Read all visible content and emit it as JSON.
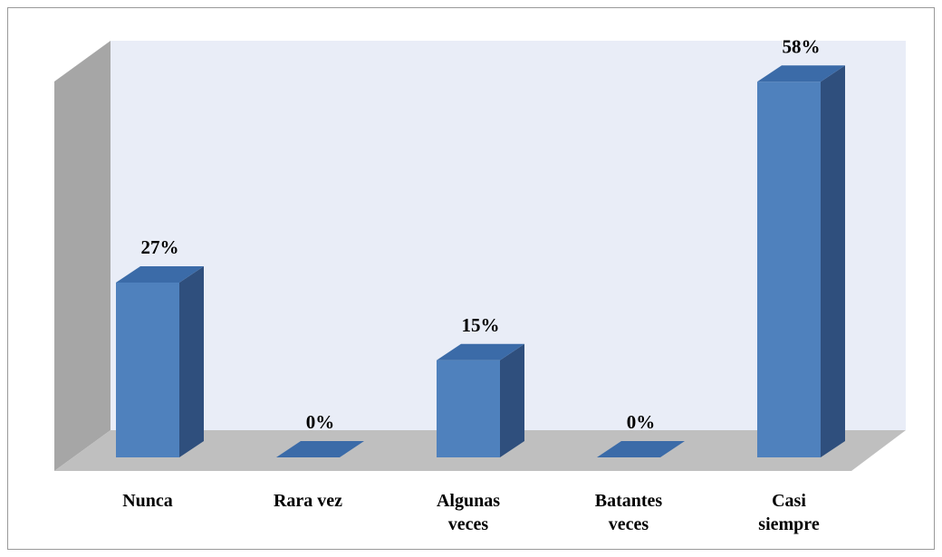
{
  "chart_data": {
    "type": "bar3d",
    "categories": [
      "Nunca",
      "Rara vez",
      "Algunas veces",
      "Batantes veces",
      "Casi siempre"
    ],
    "values": [
      27,
      0,
      15,
      0,
      58
    ],
    "value_labels": [
      "27%",
      "0%",
      "15%",
      "0%",
      "58%"
    ],
    "color": "#4f81bd"
  }
}
